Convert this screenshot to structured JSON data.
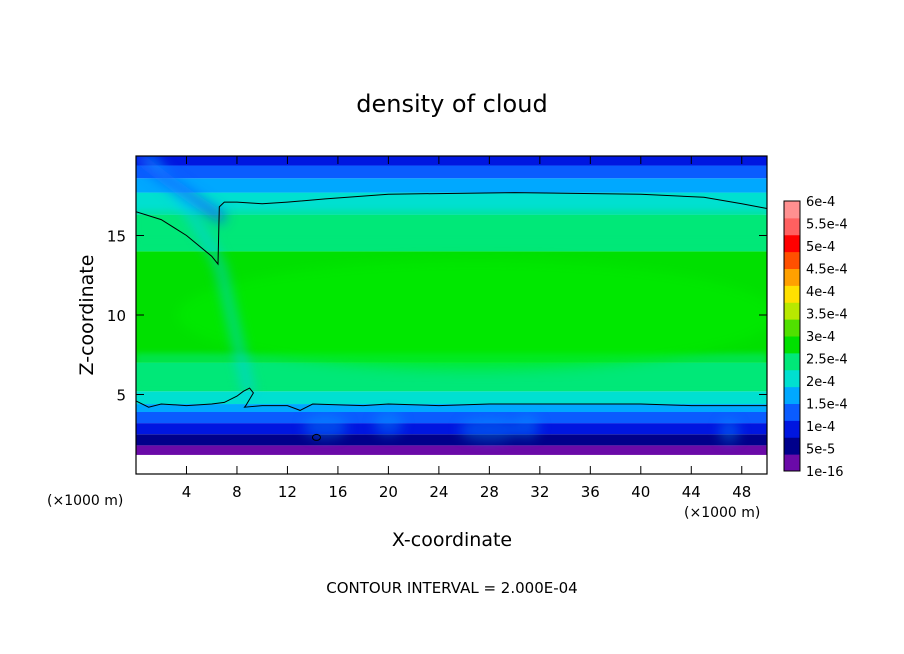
{
  "chart_data": {
    "type": "heatmap",
    "title": "density of cloud",
    "xlabel": "X-coordinate",
    "ylabel": "Z-coordinate",
    "x_unit": "(×1000 m)",
    "y_unit": "(×1000 m)",
    "xlim": [
      0,
      50
    ],
    "ylim": [
      0,
      20
    ],
    "x_ticks": [
      4,
      8,
      12,
      16,
      20,
      24,
      28,
      32,
      36,
      40,
      44,
      48
    ],
    "y_ticks": [
      5,
      10,
      15
    ],
    "footnote": "CONTOUR INTERVAL = 2.000E-04",
    "contour_interval": 0.0002,
    "colorbar": {
      "labels": [
        "1e-16",
        "5e-5",
        "1e-4",
        "1.5e-4",
        "2e-4",
        "2.5e-4",
        "3e-4",
        "3.5e-4",
        "4e-4",
        "4.5e-4",
        "5e-4",
        "5.5e-4",
        "6e-4"
      ],
      "colors": [
        "#6a0aa8",
        "#00008b",
        "#0016e0",
        "#0a5cff",
        "#00a8ff",
        "#00e0d0",
        "#00e878",
        "#00e000",
        "#50e000",
        "#b8e800",
        "#ffe000",
        "#ffa000",
        "#ff5000",
        "#ff0000",
        "#ff6060",
        "#ff9090"
      ]
    },
    "field": {
      "surface_cloud_base_z": 1.2,
      "low_cloud_top_z": 4.4,
      "core_peak_value": 0.00031,
      "core_center_z": 10
    },
    "contour_2e-4_upper": {
      "x": [
        0,
        2,
        4,
        6,
        6.5,
        6.6,
        7,
        8,
        10,
        12,
        15,
        20,
        30,
        40,
        45,
        48,
        50
      ],
      "z": [
        16.5,
        16.0,
        15.0,
        13.7,
        13.2,
        16.8,
        17.1,
        17.1,
        17.0,
        17.1,
        17.3,
        17.6,
        17.7,
        17.6,
        17.4,
        17.0,
        16.7
      ]
    },
    "contour_2e-4_lower": {
      "x": [
        0,
        1,
        2,
        4,
        6,
        7,
        8,
        8.5,
        9,
        9.3,
        8.7,
        8.6,
        10,
        12,
        13,
        14,
        18,
        20,
        24,
        28,
        32,
        36,
        40,
        44,
        48,
        50
      ],
      "z": [
        4.6,
        4.2,
        4.4,
        4.3,
        4.4,
        4.5,
        4.9,
        5.2,
        5.4,
        5.1,
        4.3,
        4.2,
        4.3,
        4.3,
        4.0,
        4.4,
        4.3,
        4.4,
        4.3,
        4.4,
        4.4,
        4.4,
        4.4,
        4.3,
        4.3,
        4.3
      ]
    }
  }
}
